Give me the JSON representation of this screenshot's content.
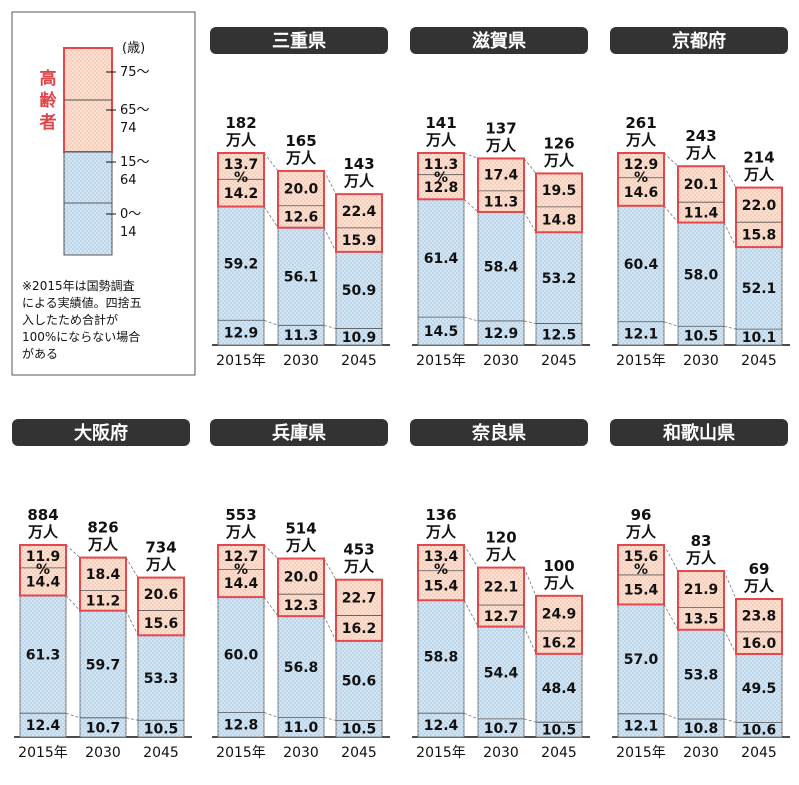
{
  "colors": {
    "elderly_fill": "#f9dccd",
    "elderly_border": "#e5474d",
    "working_fill": "#cfe2f2",
    "divider": "#555555",
    "title_bg": "#333333"
  },
  "legend": {
    "unit": "(歳)",
    "elderly_label": "高齢者",
    "ages": [
      "75～",
      "65～\n74",
      "15～\n64",
      "0～\n14"
    ],
    "note": [
      "※2015年は国勢調査",
      "による実績値。四捨五",
      "入したため合計が",
      "100%にならない場合",
      "がある"
    ]
  },
  "chart_data": {
    "type": "bar",
    "stacked": true,
    "categories": [
      "2015年",
      "2030",
      "2045"
    ],
    "segments": [
      "0～14",
      "15～64",
      "65～74",
      "75～"
    ],
    "unit_total": "万人",
    "percent_mark": "%",
    "panels": [
      {
        "title": "三重県",
        "totals": [
          "182",
          "165",
          "143"
        ],
        "values": [
          [
            12.9,
            59.2,
            14.2,
            13.7
          ],
          [
            11.3,
            56.1,
            12.6,
            20.0
          ],
          [
            10.9,
            50.9,
            15.9,
            22.4
          ]
        ]
      },
      {
        "title": "滋賀県",
        "totals": [
          "141",
          "137",
          "126"
        ],
        "values": [
          [
            14.5,
            61.4,
            12.8,
            11.3
          ],
          [
            12.9,
            58.4,
            11.3,
            17.4
          ],
          [
            12.5,
            53.2,
            14.8,
            19.5
          ]
        ]
      },
      {
        "title": "京都府",
        "totals": [
          "261",
          "243",
          "214"
        ],
        "values": [
          [
            12.1,
            60.4,
            14.6,
            12.9
          ],
          [
            10.5,
            58.0,
            11.4,
            20.1
          ],
          [
            10.1,
            52.1,
            15.8,
            22.0
          ]
        ]
      },
      {
        "title": "大阪府",
        "totals": [
          "884",
          "826",
          "734"
        ],
        "values": [
          [
            12.4,
            61.3,
            14.4,
            11.9
          ],
          [
            10.7,
            59.7,
            11.2,
            18.4
          ],
          [
            10.5,
            53.3,
            15.6,
            20.6
          ]
        ]
      },
      {
        "title": "兵庫県",
        "totals": [
          "553",
          "514",
          "453"
        ],
        "values": [
          [
            12.8,
            60.0,
            14.4,
            12.7
          ],
          [
            11.0,
            56.8,
            12.3,
            20.0
          ],
          [
            10.5,
            50.6,
            16.2,
            22.7
          ]
        ]
      },
      {
        "title": "奈良県",
        "totals": [
          "136",
          "120",
          "100"
        ],
        "values": [
          [
            12.4,
            58.8,
            15.4,
            13.4
          ],
          [
            10.7,
            54.4,
            12.7,
            22.1
          ],
          [
            10.5,
            48.4,
            16.2,
            24.9
          ]
        ]
      },
      {
        "title": "和歌山県",
        "totals": [
          "96",
          "83",
          "69"
        ],
        "values": [
          [
            12.1,
            57.0,
            15.4,
            15.6
          ],
          [
            10.8,
            53.8,
            13.5,
            21.9
          ],
          [
            10.6,
            49.5,
            16.0,
            23.8
          ]
        ]
      }
    ]
  }
}
